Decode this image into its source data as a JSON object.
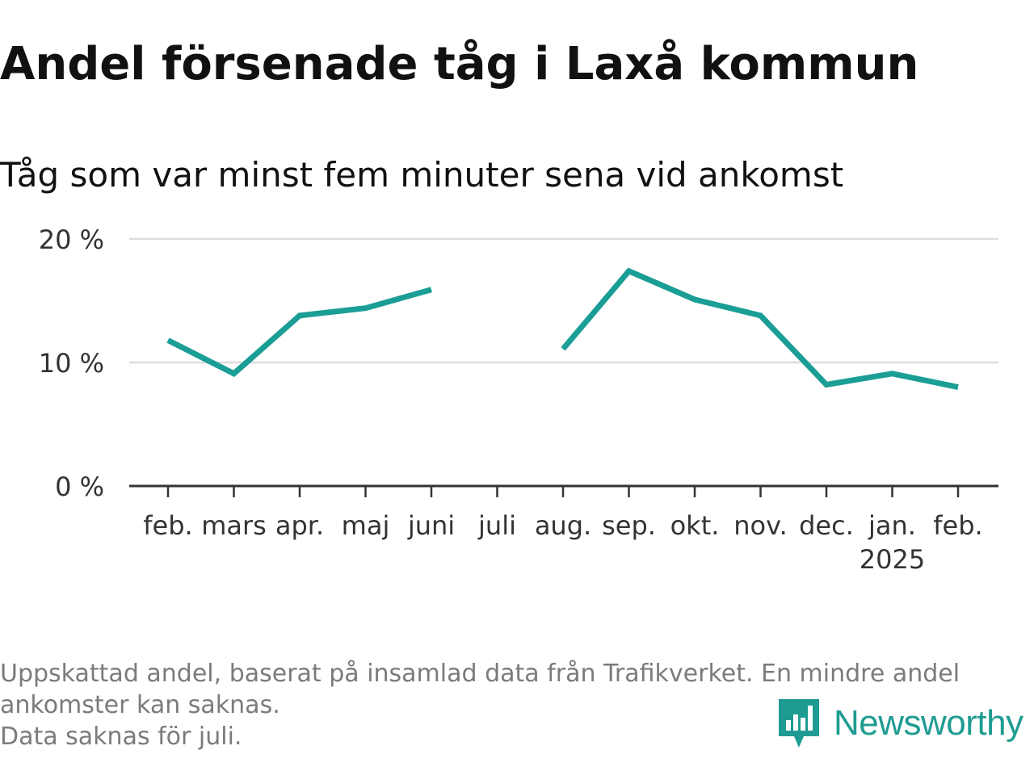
{
  "title": "Andel försenade tåg i Laxå kommun",
  "subtitle": "Tåg som var minst fem minuter sena vid ankomst",
  "footnote": {
    "line1": "Uppskattad andel, baserat på insamlad data från Trafikverket. En mindre andel",
    "line2": "ankomster kan saknas.",
    "line3": "Data saknas för juli."
  },
  "brand": {
    "name": "Newsworthy",
    "icon": "newsworthy-logo-icon",
    "color": "#1f9c91"
  },
  "chart_data": {
    "type": "line",
    "categories": [
      "feb.",
      "mars",
      "apr.",
      "maj",
      "juni",
      "juli",
      "aug.",
      "sep.",
      "okt.",
      "nov.",
      "dec.",
      "jan.",
      "feb."
    ],
    "year_label": "2025",
    "year_label_under": "jan.",
    "series": [
      {
        "values": [
          11.8,
          9.1,
          13.8,
          14.4,
          15.9,
          null,
          11.1,
          17.4,
          15.1,
          13.8,
          8.2,
          9.1,
          8.0
        ],
        "color": "#1a9e96"
      }
    ],
    "ylim": [
      0,
      20
    ],
    "yticks": [
      0,
      10,
      20
    ],
    "ytick_labels": [
      "0 %",
      "10 %",
      "20 %"
    ],
    "grid": true,
    "missing": [
      "juli"
    ]
  }
}
